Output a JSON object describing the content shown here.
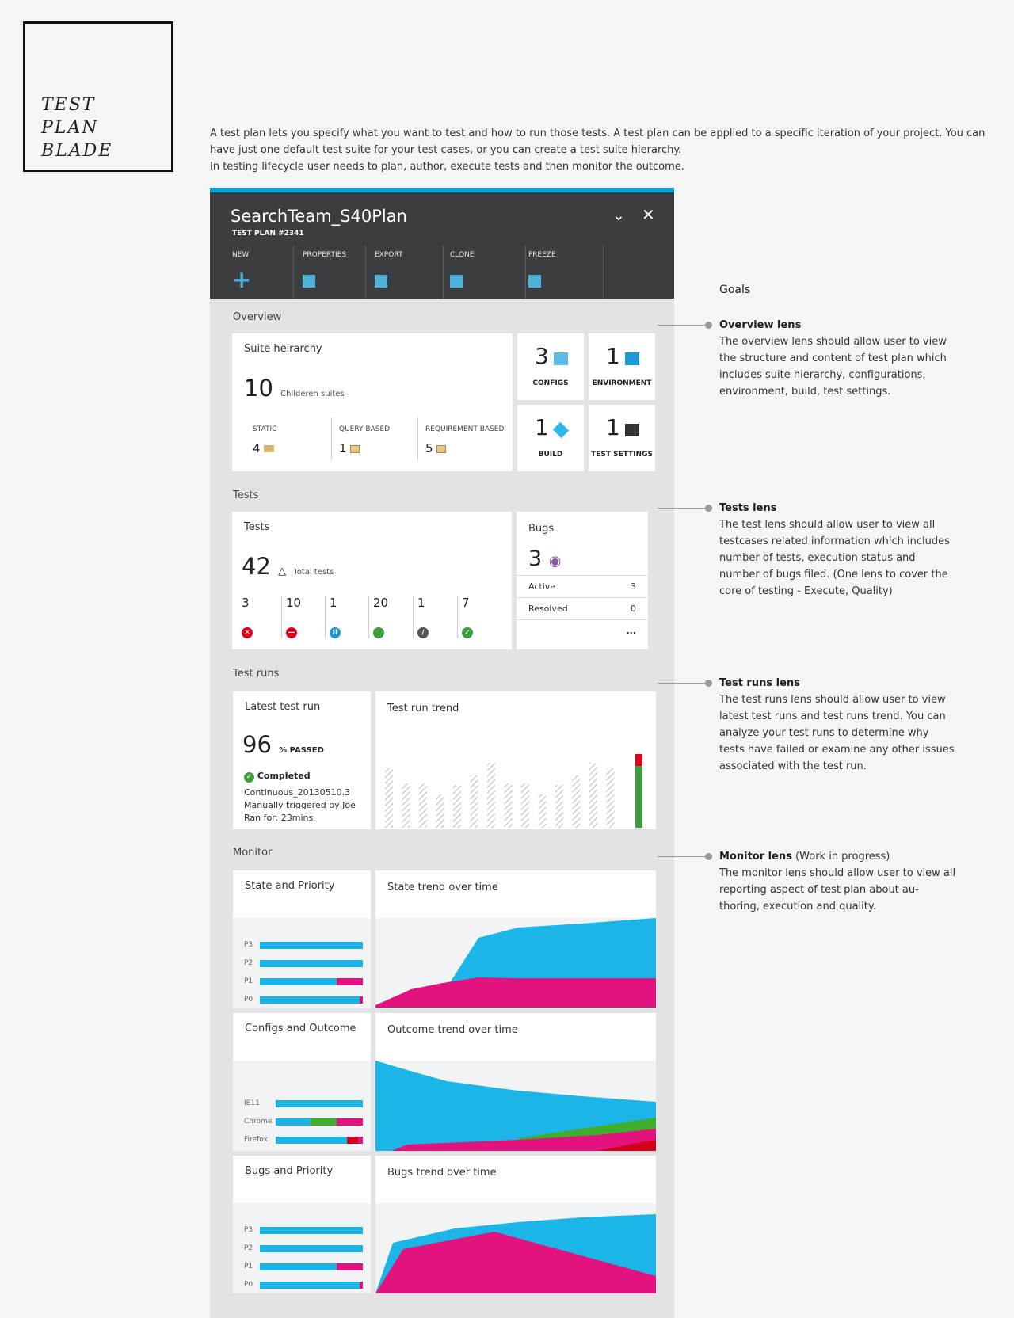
{
  "logo": {
    "line1": "TEST",
    "line2": "PLAN",
    "line3": "BLADE"
  },
  "intro": {
    "p1": "A test plan lets you specify what you want to test and how to run those tests. A test plan can be applied to a specific iteration of your project. You can have just one default test suite for your test cases, or you can create a test suite hierarchy.",
    "p2": "In testing lifecycle user needs to plan, author, execute tests and then monitor the outcome."
  },
  "blade": {
    "title": "SearchTeam_S40Plan",
    "subtitle": "TEST PLAN #2341",
    "commands": [
      {
        "label": "NEW",
        "icon": "plus-icon"
      },
      {
        "label": "PROPERTIES",
        "icon": "square-icon"
      },
      {
        "label": "EXPORT",
        "icon": "square-icon"
      },
      {
        "label": "CLONE",
        "icon": "square-icon"
      },
      {
        "label": "FREEZE",
        "icon": "square-icon"
      }
    ],
    "colors": {
      "accent": "#00a2e0",
      "header": "#3c3d40",
      "blue": "#1cb5e8",
      "magenta": "#e2137e",
      "green": "#3f9e3b",
      "red": "#e1001d"
    }
  },
  "overview": {
    "section": "Overview",
    "suite": {
      "title": "Suite heirarchy",
      "count": "10",
      "count_label": "Childeren suites",
      "static_label": "STATIC",
      "static_value": "4",
      "query_label": "QUERY BASED",
      "query_value": "1",
      "req_label": "REQUIREMENT BASED",
      "req_value": "5"
    },
    "tiles": [
      {
        "value": "3",
        "label": "CONFIGS",
        "icon": "configs-icon"
      },
      {
        "value": "1",
        "label": "ENVIRONMENT",
        "icon": "monitor-icon"
      },
      {
        "value": "1",
        "label": "BUILD",
        "icon": "cube-icon"
      },
      {
        "value": "1",
        "label": "TEST SETTINGS",
        "icon": "terminal-icon"
      }
    ]
  },
  "tests": {
    "section": "Tests",
    "card": {
      "title": "Tests",
      "total": "42",
      "total_label": "Total tests",
      "stats": [
        {
          "value": "3",
          "status": "failed"
        },
        {
          "value": "10",
          "status": "blocked"
        },
        {
          "value": "1",
          "status": "paused"
        },
        {
          "value": "20",
          "status": "active"
        },
        {
          "value": "1",
          "status": "not-applicable"
        },
        {
          "value": "7",
          "status": "passed"
        }
      ]
    },
    "bugs": {
      "title": "Bugs",
      "count": "3",
      "active_label": "Active",
      "active_value": "3",
      "resolved_label": "Resolved",
      "resolved_value": "0",
      "more": "..."
    }
  },
  "runs": {
    "section": "Test runs",
    "latest": {
      "title": "Latest test run",
      "percent": "96",
      "percent_label": "% PASSED",
      "status": "Completed",
      "build": "Continuous_20130510.3",
      "trigger": "Manually triggered by Joe",
      "duration": "Ran for: 23mins"
    },
    "trend_title": "Test run trend"
  },
  "monitor": {
    "section": "Monitor",
    "state_priority": {
      "title": "State and Priority",
      "labels": [
        "P3",
        "P2",
        "P1",
        "P0"
      ]
    },
    "state_trend": "State trend over time",
    "configs_outcome": {
      "title": "Configs and Outcome",
      "labels": [
        "IE11",
        "Chrome",
        "Firefox"
      ]
    },
    "outcome_trend": "Outcome trend over time",
    "bugs_priority": {
      "title": "Bugs and Priority",
      "labels": [
        "P3",
        "P2",
        "P1",
        "P0"
      ]
    },
    "bugs_trend": "Bugs trend over time"
  },
  "goals": {
    "heading": "Goals",
    "items": [
      {
        "title": "Overview lens",
        "note": "",
        "text": "The overview lens should allow user to view the structure and content of test plan which includes suite hierarchy, configurations, environment, build, test settings."
      },
      {
        "title": "Tests lens",
        "note": "",
        "text": "The test lens should allow user to view all testcases related information which includes number of tests, execution status and number of bugs filed. (One lens to cover the core of testing - Execute, Quality)"
      },
      {
        "title": "Test runs lens",
        "note": "",
        "text": "The test runs lens should allow user to view latest test runs and test runs trend. You can analyze your test runs to determine why tests have failed or examine any other issues associated with the test run."
      },
      {
        "title": "Monitor lens",
        "note": "(Work in progress)",
        "text": "The monitor lens should allow user to view all reporting aspect of test plan about au-thoring, execution and quality."
      }
    ]
  }
}
